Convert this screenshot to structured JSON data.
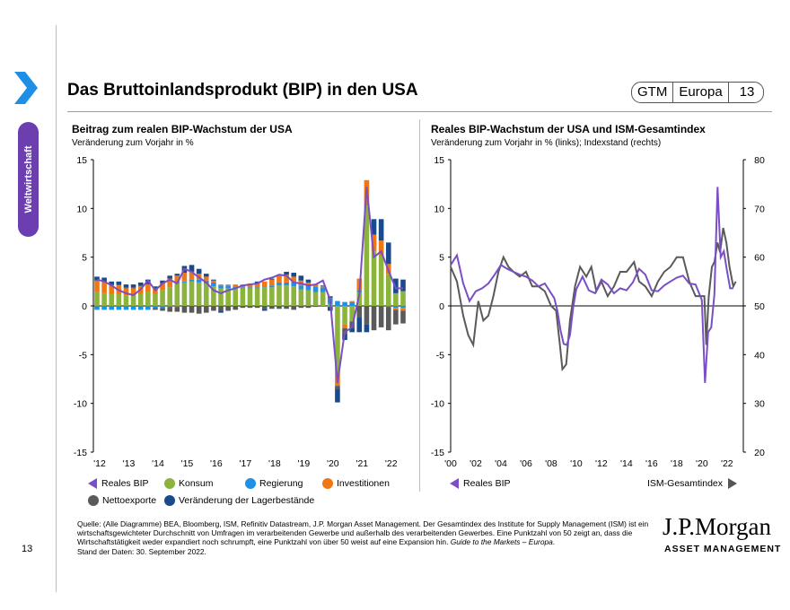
{
  "header": {
    "title": "Das Bruttoinlandsprodukt (BIP) in den USA",
    "badge": [
      "GTM",
      "Europa",
      "13"
    ],
    "side_tab": "Weltwirtschaft"
  },
  "colors": {
    "purple": "#7a4fc4",
    "green": "#8cb43c",
    "blue": "#1e90e6",
    "orange": "#f07814",
    "gray": "#5a5a5a",
    "navy": "#1a4a8c",
    "tab": "#6c3fb0",
    "chevron": "#1e8fe6"
  },
  "chart_data": [
    {
      "type": "bar",
      "title": "Beitrag zum realen BIP-Wachstum der USA",
      "subtitle": "Veränderung zum Vorjahr in %",
      "ylim": [
        -15,
        15
      ],
      "yticks": [
        15,
        10,
        5,
        0,
        -5,
        -10,
        -15
      ],
      "xticks": [
        "'12",
        "'13",
        "'14",
        "'15",
        "'16",
        "'17",
        "'18",
        "'19",
        "'20",
        "'21",
        "'22"
      ],
      "categories": [
        "1Q12",
        "2Q12",
        "3Q12",
        "4Q12",
        "1Q13",
        "2Q13",
        "3Q13",
        "4Q13",
        "1Q14",
        "2Q14",
        "3Q14",
        "4Q14",
        "1Q15",
        "2Q15",
        "3Q15",
        "4Q15",
        "1Q16",
        "2Q16",
        "3Q16",
        "4Q16",
        "1Q17",
        "2Q17",
        "3Q17",
        "4Q17",
        "1Q18",
        "2Q18",
        "3Q18",
        "4Q18",
        "1Q19",
        "2Q19",
        "3Q19",
        "4Q19",
        "1Q20",
        "2Q20",
        "3Q20",
        "4Q20",
        "1Q21",
        "2Q21",
        "3Q21",
        "4Q21",
        "1Q22",
        "2Q22",
        "3Q22"
      ],
      "series": [
        {
          "name": "Konsum",
          "values": [
            1.4,
            1.3,
            1.2,
            1.2,
            1.1,
            1.1,
            1.2,
            1.4,
            1.2,
            1.6,
            1.9,
            2.3,
            2.4,
            2.5,
            2.4,
            2.3,
            2.0,
            1.8,
            1.8,
            1.8,
            1.8,
            1.8,
            1.8,
            1.9,
            1.9,
            2.1,
            2.1,
            2.0,
            1.7,
            1.6,
            1.4,
            1.4,
            0.2,
            -6.8,
            -1.9,
            -1.6,
            1.4,
            10.4,
            5.6,
            5.2,
            3.3,
            1.3,
            1.5
          ]
        },
        {
          "name": "Regierung",
          "values": [
            -0.4,
            -0.4,
            -0.4,
            -0.4,
            -0.4,
            -0.4,
            -0.4,
            -0.4,
            -0.2,
            -0.2,
            -0.1,
            -0.1,
            0.1,
            0.2,
            0.3,
            0.3,
            0.4,
            0.3,
            0.3,
            0.2,
            0.1,
            0.1,
            0.1,
            0.1,
            0.2,
            0.3,
            0.3,
            0.4,
            0.4,
            0.5,
            0.6,
            0.5,
            0.6,
            0.5,
            0.4,
            0.4,
            0.2,
            0.1,
            0.0,
            0.0,
            -0.1,
            -0.2,
            -0.2
          ]
        },
        {
          "name": "Investitionen",
          "values": [
            1.2,
            1.2,
            0.9,
            0.9,
            0.7,
            0.7,
            0.8,
            0.8,
            0.6,
            0.7,
            0.9,
            0.8,
            0.9,
            0.8,
            0.6,
            0.4,
            0.2,
            0.1,
            0.1,
            0.2,
            0.3,
            0.4,
            0.4,
            0.5,
            0.6,
            0.7,
            0.8,
            0.6,
            0.5,
            0.3,
            0.2,
            0.1,
            -0.1,
            -1.4,
            -0.4,
            0.1,
            1.2,
            2.4,
            1.7,
            1.5,
            1.0,
            -0.2,
            -0.3
          ]
        },
        {
          "name": "Nettoexporte",
          "values": [
            0.0,
            0.0,
            0.1,
            0.1,
            0.1,
            0.1,
            0.1,
            0.1,
            -0.2,
            -0.3,
            -0.5,
            -0.5,
            -0.7,
            -0.7,
            -0.8,
            -0.7,
            -0.5,
            -0.5,
            -0.4,
            -0.4,
            -0.2,
            -0.2,
            -0.2,
            -0.3,
            -0.3,
            -0.2,
            -0.3,
            -0.4,
            -0.2,
            -0.2,
            -0.1,
            0.1,
            0.2,
            -0.3,
            -0.6,
            -0.7,
            -1.2,
            -1.9,
            -2.5,
            -2.2,
            -2.4,
            -1.5,
            -1.3
          ]
        },
        {
          "name": "Veränderung der Lagerbestände",
          "values": [
            0.4,
            0.4,
            0.3,
            0.3,
            0.3,
            0.3,
            0.3,
            0.4,
            0.2,
            0.3,
            0.3,
            0.2,
            0.7,
            0.7,
            0.5,
            0.3,
            0.1,
            -0.2,
            -0.1,
            0.0,
            0.0,
            0.0,
            0.2,
            -0.2,
            0.1,
            -0.1,
            0.3,
            0.4,
            0.5,
            0.3,
            0.0,
            0.0,
            -0.4,
            -1.4,
            -0.6,
            -0.4,
            -1.5,
            -0.8,
            1.6,
            2.2,
            2.2,
            1.5,
            1.2
          ]
        },
        {
          "name": "Reales BIP",
          "type": "line",
          "values": [
            2.7,
            2.5,
            2.1,
            1.6,
            1.3,
            1.1,
            1.7,
            2.6,
            1.6,
            2.3,
            2.7,
            2.3,
            3.8,
            3.5,
            2.9,
            2.4,
            1.6,
            1.3,
            1.6,
            1.8,
            2.1,
            2.2,
            2.3,
            2.7,
            2.9,
            3.2,
            3.1,
            2.4,
            2.3,
            2.1,
            2.2,
            2.6,
            0.6,
            -7.9,
            -2.7,
            -2.2,
            1.2,
            12.2,
            5.0,
            5.6,
            3.6,
            1.8,
            1.8
          ]
        }
      ],
      "legend": [
        "Reales BIP",
        "Konsum",
        "Regierung",
        "Investitionen",
        "Nettoexporte",
        "Veränderung der Lagerbestände"
      ]
    },
    {
      "type": "line",
      "title": "Reales BIP-Wachstum der USA und ISM-Gesamtindex",
      "subtitle": "Veränderung zum Vorjahr in % (links); Indexstand (rechts)",
      "ylim": [
        -15,
        15
      ],
      "yticks": [
        15,
        10,
        5,
        0,
        -5,
        -10,
        -15
      ],
      "y2lim": [
        20,
        80
      ],
      "y2ticks": [
        80,
        70,
        60,
        50,
        40,
        30,
        20
      ],
      "xticks": [
        "'00",
        "'02",
        "'04",
        "'06",
        "'08",
        "'10",
        "'12",
        "'14",
        "'16",
        "'18",
        "'20",
        "'22"
      ],
      "series": [
        {
          "name": "Reales BIP",
          "axis": "left",
          "x": [
            2000,
            2000.5,
            2001,
            2001.5,
            2002,
            2002.5,
            2003,
            2003.5,
            2004,
            2004.5,
            2005,
            2005.5,
            2006,
            2006.5,
            2007,
            2007.5,
            2008,
            2008.25,
            2008.5,
            2008.75,
            2009,
            2009.25,
            2009.5,
            2009.75,
            2010,
            2010.5,
            2011,
            2011.5,
            2012,
            2012.5,
            2013,
            2013.5,
            2014,
            2014.5,
            2015,
            2015.5,
            2016,
            2016.5,
            2017,
            2017.5,
            2018,
            2018.5,
            2019,
            2019.5,
            2020,
            2020.25,
            2020.5,
            2020.75,
            2021,
            2021.25,
            2021.5,
            2021.75,
            2022,
            2022.25,
            2022.5
          ],
          "values": [
            4.2,
            5.2,
            2.3,
            0.5,
            1.5,
            1.8,
            2.3,
            3.2,
            4.2,
            3.8,
            3.5,
            3.2,
            3.0,
            2.6,
            2.0,
            2.3,
            1.3,
            0.8,
            -0.5,
            -2.5,
            -3.9,
            -4.0,
            -3.0,
            -0.2,
            1.7,
            3.0,
            1.6,
            1.3,
            2.7,
            2.2,
            1.3,
            1.8,
            1.6,
            2.4,
            3.8,
            3.2,
            1.6,
            1.5,
            2.1,
            2.5,
            2.9,
            3.1,
            2.3,
            2.2,
            0.6,
            -7.9,
            -2.7,
            -2.2,
            1.2,
            12.2,
            5.0,
            5.6,
            3.6,
            1.8,
            1.8
          ]
        },
        {
          "name": "ISM-Gesamtindex",
          "axis": "right",
          "x": [
            2000,
            2000.5,
            2001,
            2001.4,
            2001.8,
            2002.2,
            2002.6,
            2003,
            2003.4,
            2003.8,
            2004.2,
            2004.6,
            2005,
            2005.5,
            2006,
            2006.5,
            2007,
            2007.5,
            2008,
            2008.4,
            2008.7,
            2008.9,
            2009.2,
            2009.5,
            2009.9,
            2010.3,
            2010.8,
            2011.2,
            2011.6,
            2012,
            2012.5,
            2013,
            2013.5,
            2014,
            2014.6,
            2015,
            2015.5,
            2016,
            2016.5,
            2017,
            2017.5,
            2018,
            2018.5,
            2019,
            2019.5,
            2019.9,
            2020.2,
            2020.35,
            2020.55,
            2020.8,
            2021,
            2021.25,
            2021.45,
            2021.7,
            2021.95,
            2022.2,
            2022.5,
            2022.7
          ],
          "values": [
            58,
            55,
            48,
            44,
            42,
            51,
            47,
            48,
            52,
            57,
            60,
            58,
            57,
            56,
            57,
            54,
            54,
            53,
            50,
            49,
            42,
            37,
            38,
            47,
            54,
            58,
            56,
            58,
            53,
            55,
            52,
            54,
            57,
            57,
            59,
            55,
            54,
            52,
            55,
            57,
            58,
            60,
            60,
            55,
            52,
            52,
            52,
            42,
            52,
            58,
            59,
            63,
            61,
            66,
            63,
            58,
            54,
            55
          ]
        }
      ],
      "legend": [
        "Reales BIP",
        "ISM-Gesamtindex"
      ]
    }
  ],
  "footer": {
    "source": "Quelle: (Alle Diagramme) BEA, Bloomberg, ISM, Refinitiv Datastream, J.P. Morgan Asset Management. Der Gesamtindex des Institute for Supply Management (ISM) ist ein wirtschaftsgewichteter Durchschnitt von Umfragen im verarbeitenden Gewerbe und außerhalb des verarbeitenden Gewerbes. Eine Punktzahl von 50 zeigt an, dass die Wirtschaftstätigkeit weder expandiert noch schrumpft, eine Punktzahl von über 50 weist auf eine Expansion hin.",
    "source_italic": "Guide to the Markets – Europa",
    "date": "Stand der Daten: 30. September 2022.",
    "page_number": "13",
    "logo_main": "J.P.Morgan",
    "logo_sub": "ASSET MANAGEMENT"
  }
}
